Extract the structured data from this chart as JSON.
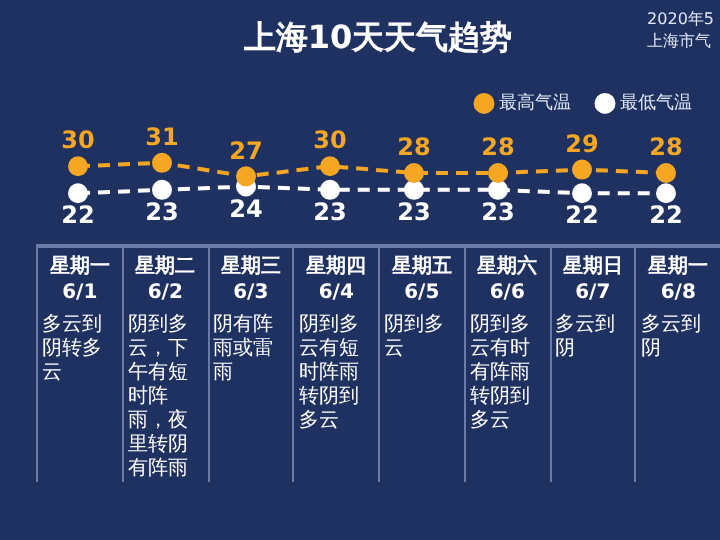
{
  "chart_data": {
    "type": "line",
    "title": "上海10天天气趋势",
    "categories": [
      "6/1",
      "6/2",
      "6/3",
      "6/4",
      "6/5",
      "6/6",
      "6/7",
      "6/8"
    ],
    "series": [
      {
        "name": "最高气温",
        "color": "#f5a623",
        "values": [
          30,
          31,
          27,
          30,
          28,
          28,
          29,
          28
        ]
      },
      {
        "name": "最低气温",
        "color": "#ffffff",
        "values": [
          22,
          23,
          24,
          23,
          23,
          23,
          22,
          22
        ]
      }
    ],
    "data_labels": true,
    "legend": "top right",
    "marker": "circle",
    "line_style": "dashed",
    "annotations": [
      "2020年5",
      "上海市气",
      "星期一",
      "多云到阴转多云",
      "星期二",
      "阴到多云，下午有短时阵雨，夜里转阴有阵雨",
      "星期三",
      "阴有阵雨或雷雨",
      "星期四",
      "阴到多云有短时阵雨转阴到多云",
      "星期五",
      "阴到多云",
      "星期六",
      "阴到多云有时有阵雨转阴到多云",
      "星期日",
      "多云到阴",
      "星期一",
      "多云到阴"
    ]
  }
}
